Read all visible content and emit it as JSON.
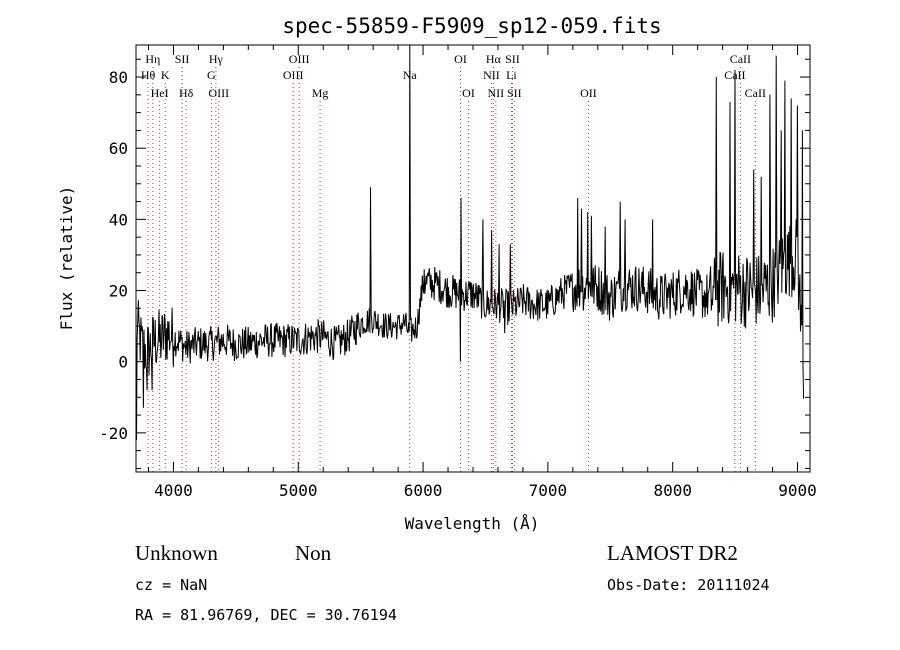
{
  "chart_data": {
    "type": "line",
    "title": "spec-55859-F5909_sp12-059.fits",
    "xlabel": "Wavelength (Å)",
    "ylabel": "Flux (relative)",
    "xlim": [
      3700,
      9100
    ],
    "ylim": [
      -31,
      89
    ],
    "x_ticks": [
      4000,
      5000,
      6000,
      7000,
      8000,
      9000
    ],
    "y_ticks": [
      -20,
      0,
      20,
      40,
      60,
      80
    ],
    "grid": false,
    "spectrum_anchors": [
      [
        3700,
        11
      ],
      [
        3750,
        4
      ],
      [
        3800,
        3
      ],
      [
        3850,
        6
      ],
      [
        3900,
        6
      ],
      [
        3950,
        8
      ],
      [
        4000,
        7
      ],
      [
        4100,
        4
      ],
      [
        4200,
        5
      ],
      [
        4300,
        5
      ],
      [
        4400,
        6
      ],
      [
        4500,
        5
      ],
      [
        4600,
        5
      ],
      [
        4700,
        6
      ],
      [
        4800,
        6
      ],
      [
        4900,
        6
      ],
      [
        5000,
        6
      ],
      [
        5100,
        7
      ],
      [
        5200,
        7
      ],
      [
        5300,
        5
      ],
      [
        5400,
        7
      ],
      [
        5450,
        9
      ],
      [
        5500,
        11
      ],
      [
        5600,
        12
      ],
      [
        5700,
        10
      ],
      [
        5800,
        10
      ],
      [
        5850,
        11
      ],
      [
        5890,
        8
      ],
      [
        5950,
        10
      ],
      [
        6000,
        22
      ],
      [
        6100,
        22
      ],
      [
        6200,
        20
      ],
      [
        6300,
        19
      ],
      [
        6400,
        19
      ],
      [
        6500,
        16
      ],
      [
        6600,
        16
      ],
      [
        6700,
        15
      ],
      [
        6800,
        17
      ],
      [
        6900,
        16
      ],
      [
        7000,
        16
      ],
      [
        7100,
        19
      ],
      [
        7200,
        21
      ],
      [
        7300,
        21
      ],
      [
        7400,
        21
      ],
      [
        7500,
        18
      ],
      [
        7600,
        21
      ],
      [
        7700,
        21
      ],
      [
        7800,
        20
      ],
      [
        7900,
        18
      ],
      [
        8000,
        19
      ],
      [
        8100,
        21
      ],
      [
        8200,
        19
      ],
      [
        8300,
        18
      ],
      [
        8400,
        21
      ],
      [
        8500,
        21
      ],
      [
        8600,
        20
      ],
      [
        8700,
        20
      ],
      [
        8800,
        22
      ],
      [
        8900,
        28
      ],
      [
        9000,
        30
      ],
      [
        9050,
        -5
      ]
    ],
    "spectrum_spikes": [
      [
        3705,
        -22
      ],
      [
        3760,
        -13
      ],
      [
        3790,
        -8
      ],
      [
        3830,
        -8
      ],
      [
        5580,
        49
      ],
      [
        5895,
        89
      ],
      [
        6010,
        26
      ],
      [
        6040,
        25
      ],
      [
        6300,
        0
      ],
      [
        6305,
        46
      ],
      [
        6480,
        40
      ],
      [
        6550,
        37
      ],
      [
        6610,
        33
      ],
      [
        6655,
        8
      ],
      [
        6700,
        33
      ],
      [
        7240,
        46
      ],
      [
        7270,
        43
      ],
      [
        7320,
        42
      ],
      [
        7350,
        41
      ],
      [
        7460,
        38
      ],
      [
        7580,
        45
      ],
      [
        7620,
        40
      ],
      [
        7840,
        40
      ],
      [
        8350,
        80
      ],
      [
        8460,
        73
      ],
      [
        8500,
        82
      ],
      [
        8600,
        28
      ],
      [
        8650,
        54
      ],
      [
        8710,
        52
      ],
      [
        8780,
        75
      ],
      [
        8830,
        86
      ],
      [
        8870,
        65
      ],
      [
        8900,
        79
      ],
      [
        8950,
        74
      ],
      [
        9000,
        72
      ],
      [
        9040,
        65
      ]
    ],
    "line_color": "#000000",
    "marker_color": "#cc3333",
    "spectral_lines": [
      {
        "label": "Hη",
        "x": 3835,
        "row": 0
      },
      {
        "label": "SII",
        "x": 4069,
        "row": 0
      },
      {
        "label": "Hγ",
        "x": 4340,
        "row": 0
      },
      {
        "label": "OIII",
        "x": 5007,
        "row": 0
      },
      {
        "label": "OI",
        "x": 6300,
        "row": 0
      },
      {
        "label": "Hα",
        "x": 6563,
        "row": 0
      },
      {
        "label": "SII",
        "x": 6716,
        "row": 0
      },
      {
        "label": "CaII",
        "x": 8542,
        "row": 0
      },
      {
        "label": "Hθ",
        "x": 3797,
        "row": 1
      },
      {
        "label": "K",
        "x": 3934,
        "row": 1
      },
      {
        "label": "G",
        "x": 4304,
        "row": 1
      },
      {
        "label": "OIII",
        "x": 4959,
        "row": 1
      },
      {
        "label": "Na",
        "x": 5893,
        "row": 1
      },
      {
        "label": "NII",
        "x": 6548,
        "row": 1
      },
      {
        "label": "Li",
        "x": 6708,
        "row": 1
      },
      {
        "label": "CaII",
        "x": 8498,
        "row": 1
      },
      {
        "label": "HeI",
        "x": 3889,
        "row": 2
      },
      {
        "label": "Hδ",
        "x": 4102,
        "row": 2
      },
      {
        "label": "OIII",
        "x": 4363,
        "row": 2
      },
      {
        "label": "Mg",
        "x": 5175,
        "row": 2
      },
      {
        "label": "OI",
        "x": 6364,
        "row": 2
      },
      {
        "label": "NII",
        "x": 6583,
        "row": 2
      },
      {
        "label": "SII",
        "x": 6731,
        "row": 2
      },
      {
        "label": "OII",
        "x": 7325,
        "row": 2
      },
      {
        "label": "CaII",
        "x": 8662,
        "row": 2
      }
    ]
  },
  "info": {
    "class": "Unknown",
    "subclass": "Non",
    "survey": "LAMOST DR2",
    "cz": "cz = NaN",
    "obs_date": "Obs-Date: 20111024",
    "coords": "RA =  81.96769, DEC =  30.76194"
  }
}
